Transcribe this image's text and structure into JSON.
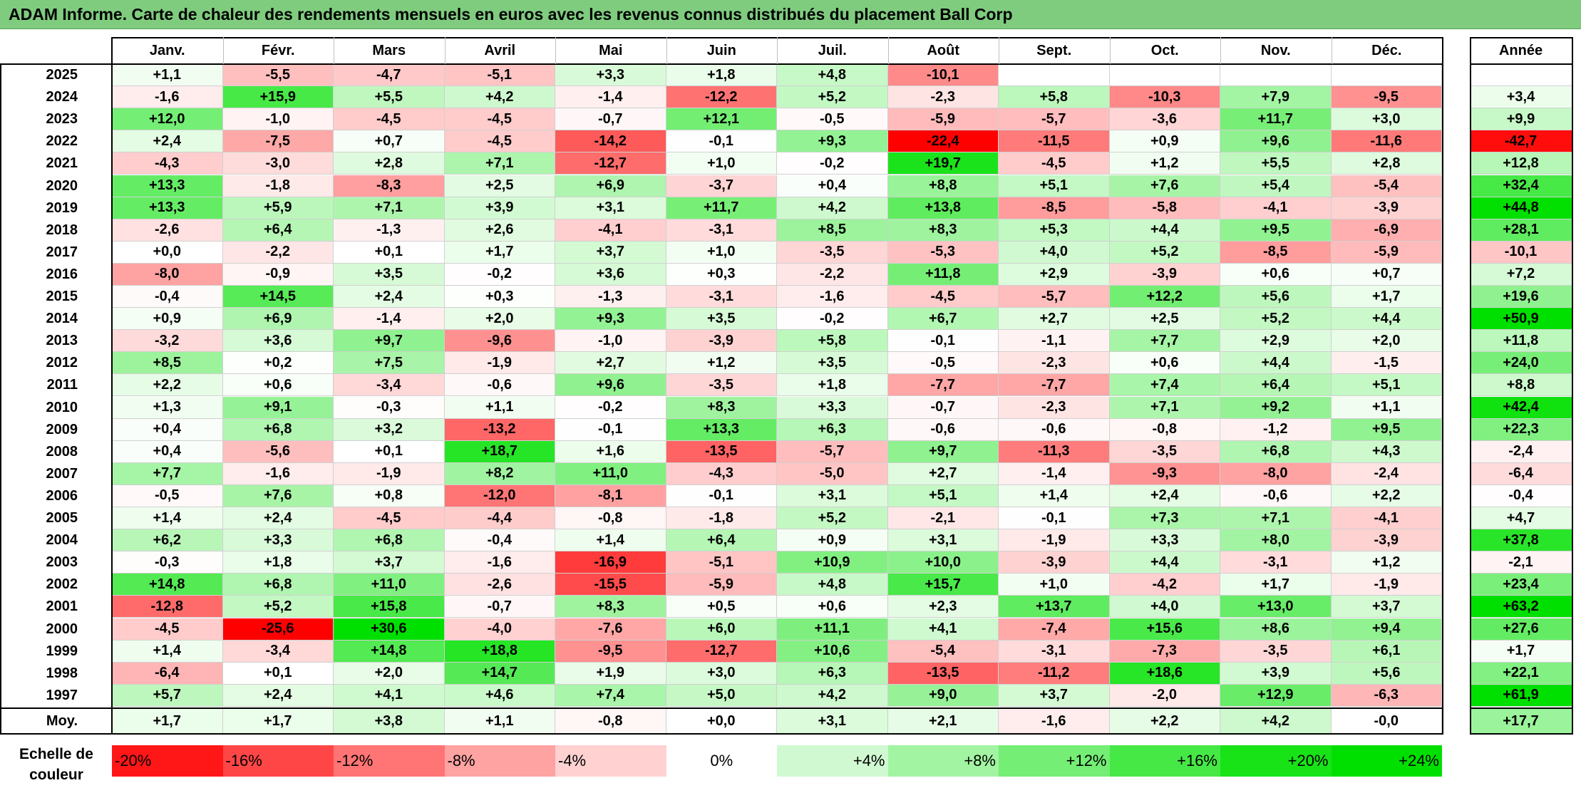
{
  "title": "ADAM Informe. Carte de chaleur des rendements mensuels en euros avec les revenus connus distribués du placement Ball Corp",
  "chart_data": {
    "type": "heatmap",
    "months": [
      "Janv.",
      "Févr.",
      "Mars",
      "Avril",
      "Mai",
      "Juin",
      "Juil.",
      "Août",
      "Sept.",
      "Oct.",
      "Nov.",
      "Déc."
    ],
    "year_header": "Année",
    "rows": [
      {
        "year": "2025",
        "values": [
          1.1,
          -5.5,
          -4.7,
          -5.1,
          3.3,
          1.8,
          4.8,
          -10.1,
          null,
          null,
          null,
          null
        ],
        "annual": null
      },
      {
        "year": "2024",
        "values": [
          -1.6,
          15.9,
          5.5,
          4.2,
          -1.4,
          -12.2,
          5.2,
          -2.3,
          5.8,
          -10.3,
          7.9,
          -9.5
        ],
        "annual": 3.4
      },
      {
        "year": "2023",
        "values": [
          12.0,
          -1.0,
          -4.5,
          -4.5,
          -0.7,
          12.1,
          -0.5,
          -5.9,
          -5.7,
          -3.6,
          11.7,
          3.0
        ],
        "annual": 9.9
      },
      {
        "year": "2022",
        "values": [
          2.4,
          -7.5,
          0.7,
          -4.5,
          -14.2,
          -0.1,
          9.3,
          -22.4,
          -11.5,
          0.9,
          9.6,
          -11.6
        ],
        "annual": -42.7
      },
      {
        "year": "2021",
        "values": [
          -4.3,
          -3.0,
          2.8,
          7.1,
          -12.7,
          1.0,
          -0.2,
          19.7,
          -4.5,
          1.2,
          5.5,
          2.8
        ],
        "annual": 12.8
      },
      {
        "year": "2020",
        "values": [
          13.3,
          -1.8,
          -8.3,
          2.5,
          6.9,
          -3.7,
          0.4,
          8.8,
          5.1,
          7.6,
          5.4,
          -5.4
        ],
        "annual": 32.4
      },
      {
        "year": "2019",
        "values": [
          13.3,
          5.9,
          7.1,
          3.9,
          3.1,
          11.7,
          4.2,
          13.8,
          -8.5,
          -5.8,
          -4.1,
          -3.9
        ],
        "annual": 44.8
      },
      {
        "year": "2018",
        "values": [
          -2.6,
          6.4,
          -1.3,
          2.6,
          -4.1,
          -3.1,
          8.5,
          8.3,
          5.3,
          4.4,
          9.5,
          -6.9
        ],
        "annual": 28.1
      },
      {
        "year": "2017",
        "values": [
          0.0,
          -2.2,
          0.1,
          1.7,
          3.7,
          1.0,
          -3.5,
          -5.3,
          4.0,
          5.2,
          -8.5,
          -5.9
        ],
        "annual": -10.1
      },
      {
        "year": "2016",
        "values": [
          -8.0,
          -0.9,
          3.5,
          -0.2,
          3.6,
          0.3,
          -2.2,
          11.8,
          2.9,
          -3.9,
          0.6,
          0.7
        ],
        "annual": 7.2
      },
      {
        "year": "2015",
        "values": [
          -0.4,
          14.5,
          2.4,
          0.3,
          -1.3,
          -3.1,
          -1.6,
          -4.5,
          -5.7,
          12.2,
          5.6,
          1.7
        ],
        "annual": 19.6
      },
      {
        "year": "2014",
        "values": [
          0.9,
          6.9,
          -1.4,
          2.0,
          9.3,
          3.5,
          -0.2,
          6.7,
          2.7,
          2.5,
          5.2,
          4.4
        ],
        "annual": 50.9
      },
      {
        "year": "2013",
        "values": [
          -3.2,
          3.6,
          9.7,
          -9.6,
          -1.0,
          -3.9,
          5.8,
          -0.1,
          -1.1,
          7.7,
          2.9,
          2.0
        ],
        "annual": 11.8
      },
      {
        "year": "2012",
        "values": [
          8.5,
          0.2,
          7.5,
          -1.9,
          2.7,
          1.2,
          3.5,
          -0.5,
          -2.3,
          0.6,
          4.4,
          -1.5
        ],
        "annual": 24.0
      },
      {
        "year": "2011",
        "values": [
          2.2,
          0.6,
          -3.4,
          -0.6,
          9.6,
          -3.5,
          1.8,
          -7.7,
          -7.7,
          7.4,
          6.4,
          5.1
        ],
        "annual": 8.8
      },
      {
        "year": "2010",
        "values": [
          1.3,
          9.1,
          -0.3,
          1.1,
          -0.2,
          8.3,
          3.3,
          -0.7,
          -2.3,
          7.1,
          9.2,
          1.1
        ],
        "annual": 42.4
      },
      {
        "year": "2009",
        "values": [
          0.4,
          6.8,
          3.2,
          -13.2,
          -0.1,
          13.3,
          6.3,
          -0.6,
          -0.6,
          -0.8,
          -1.2,
          9.5
        ],
        "annual": 22.3
      },
      {
        "year": "2008",
        "values": [
          0.4,
          -5.6,
          0.1,
          18.7,
          1.6,
          -13.5,
          -5.7,
          9.7,
          -11.3,
          -3.5,
          6.8,
          4.3
        ],
        "annual": -2.4
      },
      {
        "year": "2007",
        "values": [
          7.7,
          -1.6,
          -1.9,
          8.2,
          11.0,
          -4.3,
          -5.0,
          2.7,
          -1.4,
          -9.3,
          -8.0,
          -2.4
        ],
        "annual": -6.4
      },
      {
        "year": "2006",
        "values": [
          -0.5,
          7.6,
          0.8,
          -12.0,
          -8.1,
          -0.1,
          3.1,
          5.1,
          1.4,
          2.4,
          -0.6,
          2.2
        ],
        "annual": -0.4
      },
      {
        "year": "2005",
        "values": [
          1.4,
          2.4,
          -4.5,
          -4.4,
          -0.8,
          -1.8,
          5.2,
          -2.1,
          -0.1,
          7.3,
          7.1,
          -4.1
        ],
        "annual": 4.7
      },
      {
        "year": "2004",
        "values": [
          6.2,
          3.3,
          6.8,
          -0.4,
          1.4,
          6.4,
          0.9,
          3.1,
          -1.9,
          3.3,
          8.0,
          -3.9
        ],
        "annual": 37.8
      },
      {
        "year": "2003",
        "values": [
          -0.3,
          1.8,
          3.7,
          -1.6,
          -16.9,
          -5.1,
          10.9,
          10.0,
          -3.9,
          4.4,
          -3.1,
          1.2
        ],
        "annual": -2.1
      },
      {
        "year": "2002",
        "values": [
          14.8,
          6.8,
          11.0,
          -2.6,
          -15.5,
          -5.9,
          4.8,
          15.7,
          1.0,
          -4.2,
          1.7,
          -1.9
        ],
        "annual": 23.4
      },
      {
        "year": "2001",
        "values": [
          -12.8,
          5.2,
          15.8,
          -0.7,
          8.3,
          0.5,
          0.6,
          2.3,
          13.7,
          4.0,
          13.0,
          3.7
        ],
        "annual": 63.2
      },
      {
        "year": "2000",
        "values": [
          -4.5,
          -25.6,
          30.6,
          -4.0,
          -7.6,
          6.0,
          11.1,
          4.1,
          -7.4,
          15.6,
          8.6,
          9.4
        ],
        "annual": 27.6
      },
      {
        "year": "1999",
        "values": [
          1.4,
          -3.4,
          14.8,
          18.8,
          -9.5,
          -12.7,
          10.6,
          -5.4,
          -3.1,
          -7.3,
          -3.5,
          6.1
        ],
        "annual": 1.7
      },
      {
        "year": "1998",
        "values": [
          -6.4,
          0.1,
          2.0,
          14.7,
          1.9,
          3.0,
          6.3,
          -13.5,
          -11.2,
          18.6,
          3.9,
          5.6
        ],
        "annual": 22.1
      },
      {
        "year": "1997",
        "values": [
          5.7,
          2.4,
          4.1,
          4.6,
          7.4,
          5.0,
          4.2,
          9.0,
          3.7,
          -2.0,
          12.9,
          -6.3
        ],
        "annual": 61.9
      }
    ],
    "average": {
      "label": "Moy.",
      "values": [
        1.7,
        1.7,
        3.8,
        1.1,
        -0.8,
        0.0,
        3.1,
        2.1,
        -1.6,
        2.2,
        4.2,
        -0.0
      ],
      "annual": 17.7
    },
    "color_scale": {
      "label": "Echelle de couleur",
      "steps": [
        "-20%",
        "-16%",
        "-12%",
        "-8%",
        "-4%",
        "0%",
        "+4%",
        "+8%",
        "+12%",
        "+16%",
        "+20%",
        "+24%"
      ],
      "step_values": [
        -20,
        -16,
        -12,
        -8,
        -4,
        0,
        4,
        8,
        12,
        16,
        20,
        24
      ]
    },
    "colors": {
      "negative": "#ff0000",
      "neutral": "#ffffff",
      "positive": "#00e000"
    }
  }
}
